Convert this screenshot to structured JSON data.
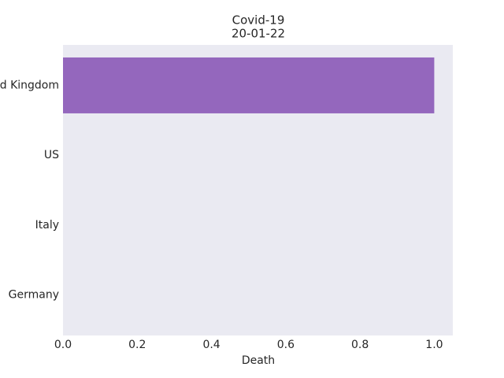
{
  "chart_data": {
    "type": "barh",
    "title": "Covid-19",
    "subtitle": "20-01-22",
    "x_label": "Death",
    "categories": [
      "United Kingdom",
      "US",
      "Italy",
      "Germany"
    ],
    "values": [
      1,
      0,
      0,
      0
    ],
    "color": "#9467bd",
    "xlim": [
      0,
      1.05
    ],
    "xticks": [
      {
        "value": 0,
        "label": "0.0"
      },
      {
        "value": 0.2,
        "label": "0.2"
      },
      {
        "value": 0.4,
        "label": "0.4"
      },
      {
        "value": 0.6,
        "label": "0.6"
      },
      {
        "value": 0.8,
        "label": "0.8"
      },
      {
        "value": 1,
        "label": "1.0"
      }
    ],
    "grid": false
  }
}
